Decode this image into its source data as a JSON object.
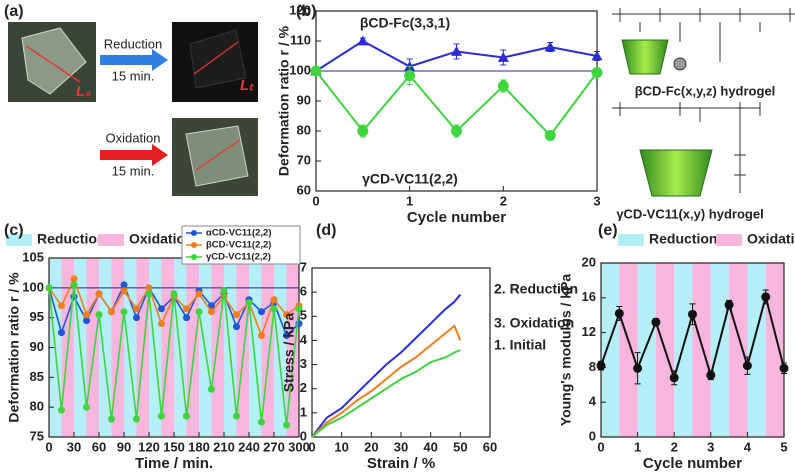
{
  "panel_a": {
    "label": "(a)",
    "reduction": "Reduction",
    "reduction_time": "15 min.",
    "oxidation": "Oxidation",
    "oxidation_time": "15 min.",
    "initial_length": "L₀",
    "deformed_length": "Lₜ"
  },
  "structures": {
    "bcd_fc": "βCD-Fc(x,y,z) hydrogel",
    "gcd_vc": "γCD-VC11(x,y) hydrogel"
  },
  "chart_data": [
    {
      "type": "line",
      "label": "(b)",
      "xlabel": "Cycle number",
      "ylabel": "Deformation ratio r / %",
      "x": [
        0,
        0.5,
        1,
        1.5,
        2,
        2.5,
        3
      ],
      "xlim": [
        0,
        3
      ],
      "xticks": [
        0,
        1,
        2,
        3
      ],
      "ylim": [
        60,
        120
      ],
      "yticks": [
        60,
        70,
        80,
        90,
        100,
        110,
        120
      ],
      "hline": 100,
      "series": [
        {
          "name": "βCD-Fc(3,3,1)",
          "color": "#2b2bd8",
          "marker": "triangle",
          "values": [
            100,
            110,
            101.5,
            106.5,
            104.5,
            108,
            105
          ],
          "errors": [
            0,
            1,
            2.5,
            2.5,
            2.5,
            1.5,
            1.5
          ]
        },
        {
          "name": "γCD-VC11(2,2)",
          "color": "#3ed43e",
          "marker": "circle",
          "values": [
            100,
            80,
            98.5,
            80,
            95,
            78.5,
            99.5
          ],
          "errors": [
            0,
            2,
            3,
            2,
            2,
            1.5,
            1
          ]
        }
      ]
    },
    {
      "type": "line",
      "label": "(c)",
      "xlabel": "Time / min.",
      "ylabel": "Deformation ratio r / %",
      "x": [
        0,
        15,
        30,
        45,
        60,
        75,
        90,
        105,
        120,
        135,
        150,
        165,
        180,
        195,
        210,
        225,
        240,
        255,
        270,
        285,
        300
      ],
      "xlim": [
        0,
        300
      ],
      "xticks": [
        0,
        30,
        60,
        90,
        120,
        150,
        180,
        210,
        240,
        270,
        300
      ],
      "ylim": [
        75,
        105
      ],
      "yticks": [
        75,
        80,
        85,
        90,
        95,
        100,
        105
      ],
      "hline": 100,
      "legend": "upper right",
      "bands": [
        {
          "name": "Reduction",
          "color": "#b5eef6"
        },
        {
          "name": "Oxidation",
          "color": "#f8b6de"
        }
      ],
      "band_width": 15,
      "series": [
        {
          "name": "αCD-VC11(2,2)",
          "color": "#2157d6",
          "marker": "circle",
          "values": [
            100,
            92.5,
            98.5,
            94.5,
            99,
            96,
            100.5,
            95,
            100,
            96.5,
            98.5,
            95,
            99.5,
            97,
            99,
            93.5,
            98,
            96,
            97.5,
            92,
            94
          ]
        },
        {
          "name": "βCD-VC11(2,2)",
          "color": "#f07e1e",
          "marker": "circle",
          "values": [
            100,
            97,
            101.5,
            95.5,
            99,
            96,
            99.5,
            96.5,
            100,
            94,
            98.5,
            96.5,
            99,
            96,
            98.5,
            95.5,
            97.5,
            92,
            98,
            95.5,
            97
          ]
        },
        {
          "name": "γCD-VC11(2,2)",
          "color": "#3ed43e",
          "marker": "circle",
          "values": [
            100,
            79.5,
            100.5,
            80,
            95.5,
            78,
            96,
            78,
            99,
            78.5,
            99,
            78.5,
            96,
            83,
            99.5,
            78.5,
            97.5,
            77.5,
            96.5,
            77,
            96.5
          ]
        }
      ]
    },
    {
      "type": "line",
      "label": "(d)",
      "xlabel": "Strain / %",
      "ylabel": "Stress / kPa",
      "x": [
        0,
        5,
        10,
        15,
        20,
        25,
        30,
        35,
        40,
        45,
        48,
        50
      ],
      "xlim": [
        0,
        60
      ],
      "xticks": [
        0,
        10,
        20,
        30,
        40,
        50,
        60
      ],
      "ylim": [
        0,
        7
      ],
      "yticks": [
        0,
        1,
        2,
        3,
        4,
        5,
        6,
        7
      ],
      "series": [
        {
          "name": "2. Reduction",
          "color": "#2b2bd8",
          "values": [
            0,
            0.8,
            1.2,
            1.8,
            2.4,
            3.0,
            3.5,
            4.1,
            4.7,
            5.3,
            5.6,
            5.9
          ]
        },
        {
          "name": "3. Oxidation",
          "color": "#f07e1e",
          "values": [
            0,
            0.6,
            1.0,
            1.5,
            1.9,
            2.4,
            2.9,
            3.3,
            3.8,
            4.3,
            4.6,
            4.0
          ]
        },
        {
          "name": "1. Initial",
          "color": "#3ed43e",
          "values": [
            0,
            0.5,
            0.8,
            1.2,
            1.6,
            2.0,
            2.4,
            2.7,
            3.1,
            3.3,
            3.5,
            3.6
          ]
        }
      ]
    },
    {
      "type": "line",
      "label": "(e)",
      "xlabel": "Cycle number",
      "ylabel": "Young's modulus / kPa",
      "x": [
        0,
        0.5,
        1,
        1.5,
        2,
        2.5,
        3,
        3.5,
        4,
        4.5,
        5
      ],
      "xlim": [
        0,
        5
      ],
      "xticks": [
        0,
        1,
        2,
        3,
        4,
        5
      ],
      "ylim": [
        0,
        20
      ],
      "yticks": [
        0,
        4,
        8,
        12,
        16,
        20
      ],
      "bands": [
        {
          "name": "Reduction",
          "color": "#b5eef6"
        },
        {
          "name": "Oxidation",
          "color": "#f8b6de"
        }
      ],
      "band_width": 0.5,
      "series": [
        {
          "name": "Young's modulus",
          "color": "#111111",
          "marker": "circle",
          "values": [
            8.2,
            14.2,
            7.9,
            13.2,
            6.8,
            14.1,
            7.1,
            15.2,
            8.2,
            16.1,
            7.9
          ],
          "errors": [
            0.5,
            0.8,
            1.8,
            0.4,
            0.8,
            1.2,
            0.5,
            0.5,
            1.0,
            0.8,
            0.6
          ]
        }
      ]
    }
  ]
}
